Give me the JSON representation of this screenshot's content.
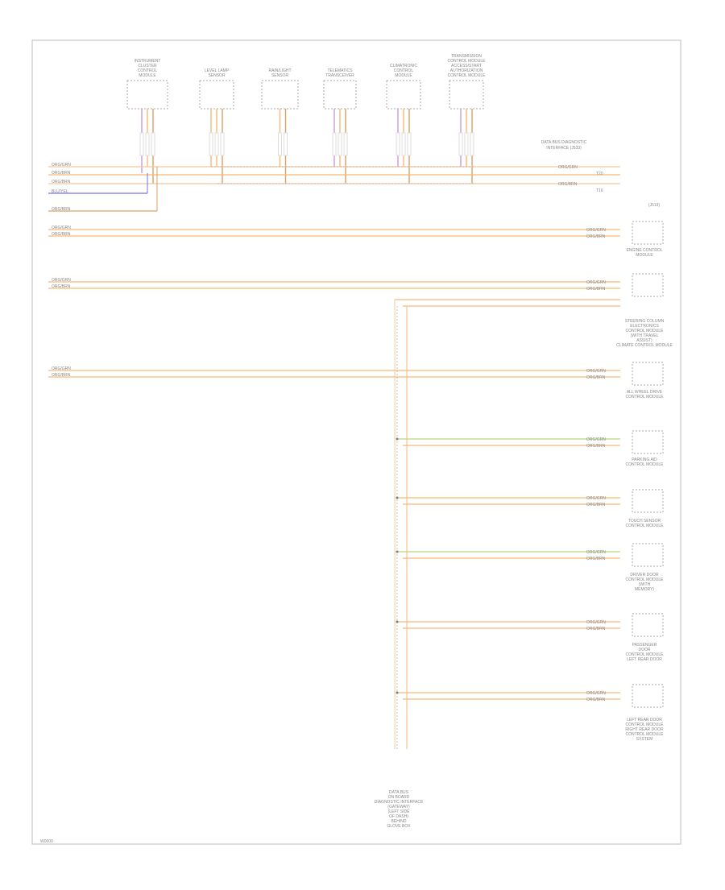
{
  "diagram": {
    "top_modules": [
      [
        "INSTRUMENT",
        "CLUSTER",
        "CONTROL",
        "MODULE"
      ],
      [
        "LEVEL LAMP",
        "SENSOR"
      ],
      [
        "RAIN/LIGHT",
        "SENSOR"
      ],
      [
        "TELEMATICS",
        "TRANSCEIVER"
      ],
      [
        "CLIMATRONIC",
        "CONTROL",
        "MODULE"
      ],
      [
        "TRANSMISSION",
        "CONTROL MODULE",
        "ACCESS/START",
        "AUTHORIZATION",
        "CONTROL MODULE"
      ]
    ],
    "top_right_label": [
      "DATA BUS DIAGNOSTIC",
      "INTERFACE (J533)"
    ],
    "top_right_wires": [
      "ORG/GRN",
      "ORG/BRN"
    ],
    "top_right_pins": [
      "T20",
      "T16"
    ],
    "right_top_tag": "(J519)",
    "wire_labels": [
      "ORG/GRN",
      "ORG/BRN",
      "BLU/YEL",
      "ORG/BRN"
    ],
    "right_modules": [
      [
        "ENGINE CONTROL",
        "MODULE"
      ],
      [
        "STEERING COLUMN",
        "ELECTRONICS",
        "CONTROL MODULE",
        "(WITH TRAVEL",
        "ASSIST)",
        "CLIMATE CONTROL MODULE"
      ],
      [
        "ALL WHEEL DRIVE",
        "CONTROL MODULE"
      ],
      [
        "PARKING AID",
        "CONTROL MODULE"
      ],
      [
        "TOUCH SENSOR",
        "CONTROL MODULE"
      ],
      [
        "DRIVER DOOR",
        "CONTROL MODULE",
        "(WITH",
        "MEMORY)"
      ],
      [
        "PASSENGER",
        "DOOR",
        "CONTROL MODULE",
        "LEFT REAR DOOR"
      ],
      [
        "LEFT REAR DOOR",
        "CONTROL MODULE",
        "RIGHT REAR DOOR",
        "CONTROL MODULE",
        "SYSTEM"
      ]
    ],
    "bottom_label": [
      "DATA BUS",
      "ON BOARD",
      "DIAGNOSTIC INTERFACE",
      "(GATEWAY)",
      "(LEFT SIDE",
      "OF DASH)",
      "BEHIND",
      "GLOVE BOX"
    ],
    "corner_code": "W0000"
  }
}
